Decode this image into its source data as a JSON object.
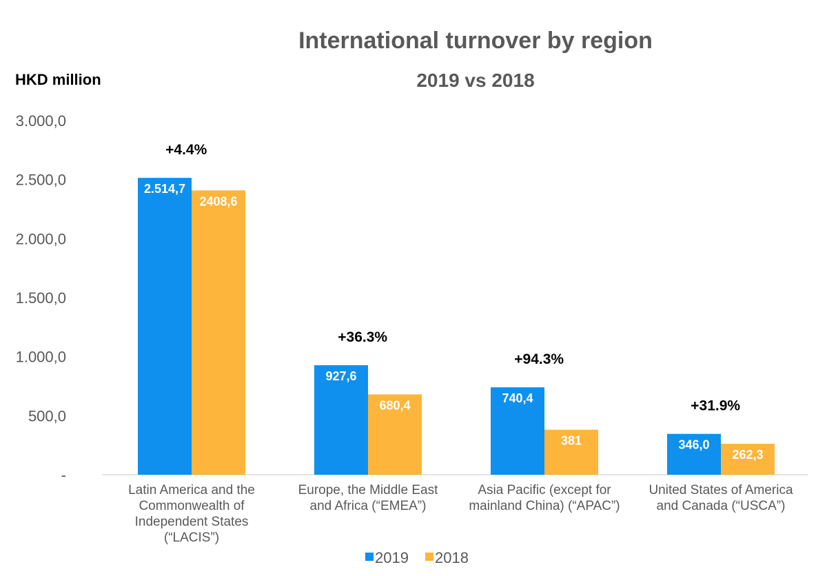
{
  "chart_data": {
    "type": "bar",
    "title": "International turnover by region",
    "subtitle": "2019 vs 2018",
    "ylabel": "HKD million",
    "ylim": [
      0,
      3000
    ],
    "yticks": [
      {
        "value": 0,
        "label": "-"
      },
      {
        "value": 500,
        "label": "500,0"
      },
      {
        "value": 1000,
        "label": "1.000,0"
      },
      {
        "value": 1500,
        "label": "1.500,0"
      },
      {
        "value": 2000,
        "label": "2.000,0"
      },
      {
        "value": 2500,
        "label": "2.500,0"
      },
      {
        "value": 3000,
        "label": "3.000,0"
      }
    ],
    "grid": false,
    "legend_position": "bottom",
    "categories": [
      [
        "Latin America and the",
        "Commonwealth of",
        "Independent States",
        "(“LACIS”)"
      ],
      [
        "Europe, the Middle East",
        "and Africa (“EMEA”)"
      ],
      [
        "Asia Pacific (except for",
        "mainland China) (“APAC”)"
      ],
      [
        "United States of America",
        "and Canada (“USCA”)"
      ]
    ],
    "series": [
      {
        "name": "2019",
        "color": "#0F90EE",
        "values": [
          2514.7,
          927.6,
          740.4,
          346.0
        ],
        "labels": [
          "2.514,7",
          "927,6",
          "740,4",
          "346,0"
        ]
      },
      {
        "name": "2018",
        "color": "#FDB53B",
        "values": [
          2408.6,
          680.4,
          381,
          262.3
        ],
        "labels": [
          "2408,6",
          "680,4",
          "381",
          "262,3"
        ]
      }
    ],
    "annotations": [
      "+4.4%",
      "+36.3%",
      "+94.3%",
      "+31.9%"
    ]
  }
}
